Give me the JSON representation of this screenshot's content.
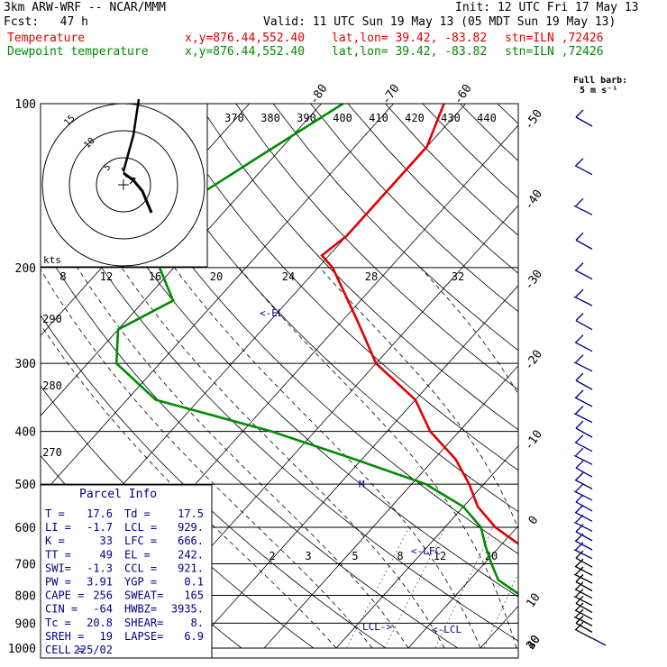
{
  "header": {
    "line1_left": "3km ARW-WRF -- NCAR/MMM",
    "line1_right": "Init: 12 UTC Fri 17 May 13",
    "line2_left": "Fcst:   47 h",
    "line2_right": "Valid: 11 UTC Sun 19 May 13 (05 MDT Sun 19 May 13)",
    "temp_label": "Temperature",
    "dew_label": "Dewpoint temperature",
    "xy": "x,y=876.44,552.40",
    "latlon": "lat,lon= 39.42, -83.82",
    "stn": "stn=ILN ,72426",
    "barb_key_1": "Full barb:",
    "barb_key_2": "5 m s⁻¹"
  },
  "chart_data": {
    "type": "line",
    "title": "",
    "xlabel": "",
    "ylabel": "",
    "pressure_levels": [
      100,
      200,
      300,
      400,
      500,
      600,
      700,
      800,
      900,
      1000
    ],
    "temperature_ticks": [
      -80,
      -70,
      -60,
      -50,
      -40,
      -30,
      -20,
      -10,
      0,
      10,
      20,
      30,
      40
    ],
    "theta_labels": [
      370,
      380,
      390,
      400,
      410,
      420,
      430,
      440
    ],
    "theta_low_labels": [
      290,
      280,
      270
    ],
    "mixing_ratio_labels_upper": [
      8,
      12,
      16,
      20,
      24,
      28,
      32
    ],
    "mixing_ratio_labels_lower": [
      2,
      3,
      5,
      8,
      12,
      20
    ],
    "annotations": [
      "<-EL",
      "<-LFC",
      "<-LCL",
      "LCL->",
      "M"
    ],
    "series": [
      {
        "name": "Temperature",
        "color": "#e00000",
        "points": [
          [
            100,
            -63
          ],
          [
            120,
            -60
          ],
          [
            150,
            -60
          ],
          [
            175,
            -60
          ],
          [
            190,
            -61
          ],
          [
            200,
            -58
          ],
          [
            250,
            -48
          ],
          [
            300,
            -40
          ],
          [
            350,
            -30
          ],
          [
            400,
            -24
          ],
          [
            450,
            -17
          ],
          [
            500,
            -12
          ],
          [
            550,
            -8
          ],
          [
            600,
            -3
          ],
          [
            650,
            3
          ],
          [
            700,
            8
          ],
          [
            750,
            13
          ],
          [
            800,
            16
          ],
          [
            850,
            17
          ],
          [
            900,
            17.5
          ],
          [
            950,
            17.6
          ]
        ]
      },
      {
        "name": "Dewpoint temperature",
        "color": "#008c00",
        "points": [
          [
            100,
            -77
          ],
          [
            125,
            -82
          ],
          [
            150,
            -86
          ],
          [
            175,
            -87
          ],
          [
            200,
            -82
          ],
          [
            230,
            -76
          ],
          [
            260,
            -80
          ],
          [
            300,
            -76
          ],
          [
            350,
            -66
          ],
          [
            400,
            -46
          ],
          [
            450,
            -31
          ],
          [
            500,
            -18
          ],
          [
            550,
            -10
          ],
          [
            600,
            -5
          ],
          [
            650,
            -2
          ],
          [
            700,
            1
          ],
          [
            750,
            4
          ],
          [
            800,
            9
          ],
          [
            850,
            13
          ],
          [
            900,
            16
          ],
          [
            950,
            17.5
          ]
        ]
      }
    ],
    "wind_barbs_ms": [
      {
        "p": 975,
        "dir": 225,
        "spd": 2
      },
      {
        "p": 900,
        "dir": 230,
        "spd": 5
      },
      {
        "p": 800,
        "dir": 240,
        "spd": 9
      },
      {
        "p": 700,
        "dir": 245,
        "spd": 10
      },
      {
        "p": 600,
        "dir": 250,
        "spd": 11
      },
      {
        "p": 500,
        "dir": 255,
        "spd": 13
      },
      {
        "p": 400,
        "dir": 260,
        "spd": 15
      },
      {
        "p": 300,
        "dir": 265,
        "spd": 17
      },
      {
        "p": 200,
        "dir": 255,
        "spd": 14
      },
      {
        "p": 150,
        "dir": 235,
        "spd": 19
      },
      {
        "p": 110,
        "dir": 230,
        "spd": 18
      }
    ],
    "hodograph": {
      "rings": [
        5,
        10,
        15
      ],
      "ring_labels": [
        "5",
        "10",
        "15"
      ],
      "units": "kts",
      "points": [
        [
          -1.5,
          2
        ],
        [
          -2,
          3.5
        ],
        [
          1,
          5
        ],
        [
          2.5,
          7
        ],
        [
          3,
          9
        ],
        [
          2,
          11
        ],
        [
          1,
          13
        ]
      ],
      "storm_motion": [
        -4,
        -10
      ]
    }
  },
  "parcel_info": {
    "title": "Parcel Info",
    "rows": [
      [
        "T  =",
        "17.6",
        "Td =",
        "17.5"
      ],
      [
        "LI =",
        "-1.7",
        "LCL =",
        "929."
      ],
      [
        "K  =",
        "33",
        "LFC =",
        "666."
      ],
      [
        "TT =",
        "49",
        "EL  =",
        "242."
      ],
      [
        "SWI=",
        "-1.3",
        "CCL =",
        "921."
      ],
      [
        "PW =",
        "3.91",
        "YGP =",
        "0.1"
      ],
      [
        "CAPE =",
        "256",
        "SWEAT=",
        "165"
      ],
      [
        "CIN  =",
        "-64",
        "HWBZ=",
        "3935."
      ],
      [
        "Tc  =",
        "20.8",
        "SHEAR=",
        "8."
      ],
      [
        "SREH =",
        "19",
        "LAPSE=",
        "6.9"
      ],
      [
        "CELL =",
        "225/02",
        "",
        ""
      ]
    ]
  }
}
